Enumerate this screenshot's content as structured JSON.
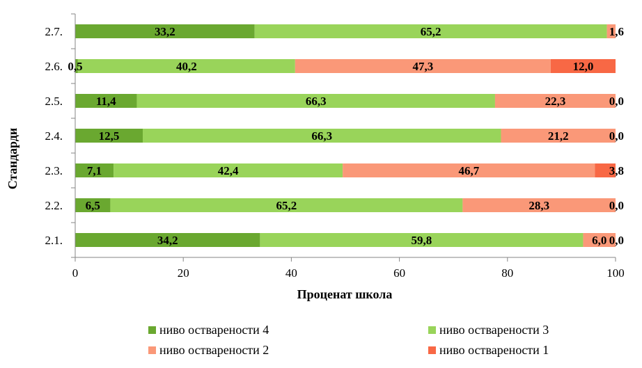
{
  "chart_data": {
    "type": "bar",
    "orientation": "horizontal",
    "stacked": true,
    "categories": [
      "2.1.",
      "2.2.",
      "2.3.",
      "2.4.",
      "2.5.",
      "2.6.",
      "2.7."
    ],
    "series": [
      {
        "name": "ниво оствареноcти 4",
        "color": "#6aa830",
        "values": [
          34.2,
          6.5,
          7.1,
          12.5,
          11.4,
          0.5,
          33.2
        ],
        "labels": [
          "34,2",
          "6,5",
          "7,1",
          "12,5",
          "11,4",
          "0,5",
          "33,2"
        ]
      },
      {
        "name": "ниво оствареноcти 3",
        "color": "#99d45a",
        "values": [
          59.8,
          65.2,
          42.4,
          66.3,
          66.3,
          40.2,
          65.2
        ],
        "labels": [
          "59,8",
          "65,2",
          "42,4",
          "66,3",
          "66,3",
          "40,2",
          "65,2"
        ]
      },
      {
        "name": "ниво оствареноcти 2",
        "color": "#fa9878",
        "values": [
          6.0,
          28.3,
          46.7,
          21.2,
          22.3,
          47.3,
          1.6
        ],
        "labels": [
          "6,0",
          "28,3",
          "46,7",
          "21,2",
          "22,3",
          "47,3",
          "1,6"
        ]
      },
      {
        "name": "ниво оствареноcти 1",
        "color": "#f86845",
        "values": [
          0.0,
          0.0,
          3.8,
          0.0,
          0.0,
          12.0,
          0.0
        ],
        "labels": [
          "0,0",
          "0,0",
          "3,8",
          "0,0",
          "0,0",
          "12,0",
          ""
        ]
      }
    ],
    "xlabel": "Проценат школа",
    "ylabel": "Стандарди",
    "xlim": [
      0,
      100
    ],
    "xticks": [
      "0",
      "20",
      "40",
      "60",
      "80",
      "100"
    ],
    "grid": false,
    "legend_position": "bottom"
  }
}
